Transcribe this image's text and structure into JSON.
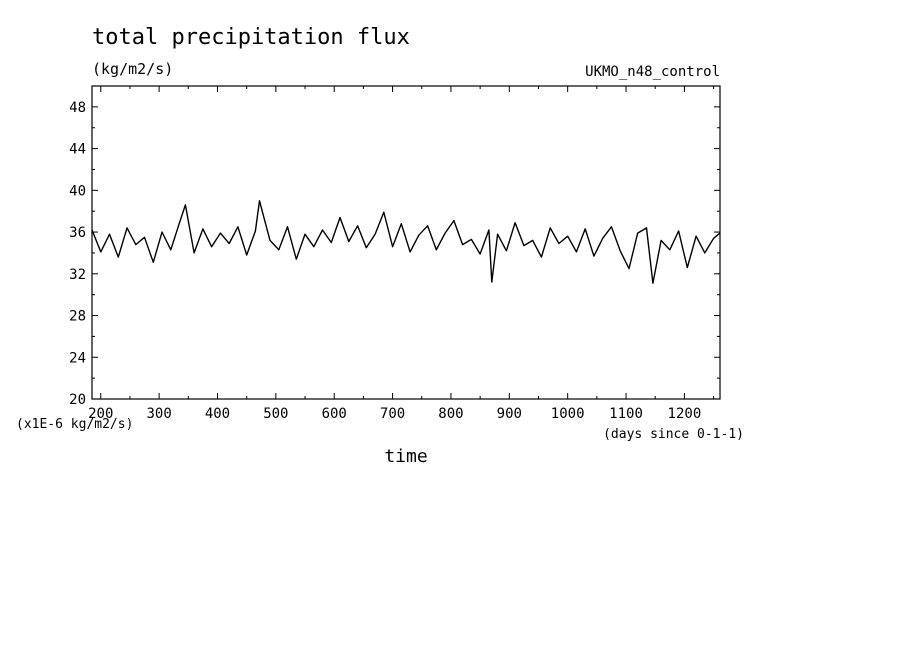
{
  "chart_data": {
    "type": "line",
    "title": "total precipitation flux",
    "units": "(kg/m2/s)",
    "experiment": "UKMO_n48_control",
    "xlabel": "time",
    "x_units": "(days since 0-1-1)",
    "y_scale_note": "(x1E-6 kg/m2/s)",
    "xlim": [
      185,
      1261
    ],
    "ylim": [
      20,
      50
    ],
    "xticks": [
      200,
      300,
      400,
      500,
      600,
      700,
      800,
      900,
      1000,
      1100,
      1200
    ],
    "yticks": [
      20,
      24,
      28,
      32,
      36,
      40,
      44,
      48
    ],
    "grid": false,
    "line_color": "#000000",
    "series": [
      {
        "x": [
          185,
          200,
          215,
          230,
          245,
          260,
          275,
          290,
          305,
          320,
          335,
          345,
          360,
          375,
          390,
          405,
          420,
          435,
          450,
          465,
          472,
          490,
          505,
          520,
          535,
          550,
          565,
          580,
          595,
          610,
          625,
          640,
          655,
          670,
          685,
          700,
          715,
          730,
          745,
          760,
          775,
          790,
          805,
          820,
          835,
          850,
          865,
          870,
          880,
          895,
          910,
          925,
          940,
          955,
          970,
          985,
          1000,
          1015,
          1030,
          1045,
          1060,
          1075,
          1090,
          1105,
          1120,
          1135,
          1146,
          1160,
          1175,
          1190,
          1205,
          1220,
          1235,
          1250,
          1261
        ],
        "y": [
          36.2,
          34.1,
          35.8,
          33.6,
          36.4,
          34.8,
          35.5,
          33.1,
          36.0,
          34.3,
          36.9,
          38.6,
          34.0,
          36.3,
          34.6,
          35.9,
          34.9,
          36.5,
          33.8,
          36.1,
          39.0,
          35.2,
          34.3,
          36.5,
          33.4,
          35.8,
          34.6,
          36.2,
          35.0,
          37.4,
          35.1,
          36.6,
          34.5,
          35.8,
          37.9,
          34.6,
          36.8,
          34.1,
          35.7,
          36.6,
          34.3,
          35.9,
          37.1,
          34.8,
          35.3,
          33.9,
          36.2,
          31.2,
          35.8,
          34.2,
          36.9,
          34.7,
          35.2,
          33.6,
          36.4,
          34.9,
          35.6,
          34.1,
          36.3,
          33.7,
          35.4,
          36.5,
          34.2,
          32.5,
          35.9,
          36.4,
          31.1,
          35.2,
          34.3,
          36.1,
          32.6,
          35.6,
          34.0,
          35.4,
          35.9
        ]
      }
    ]
  }
}
